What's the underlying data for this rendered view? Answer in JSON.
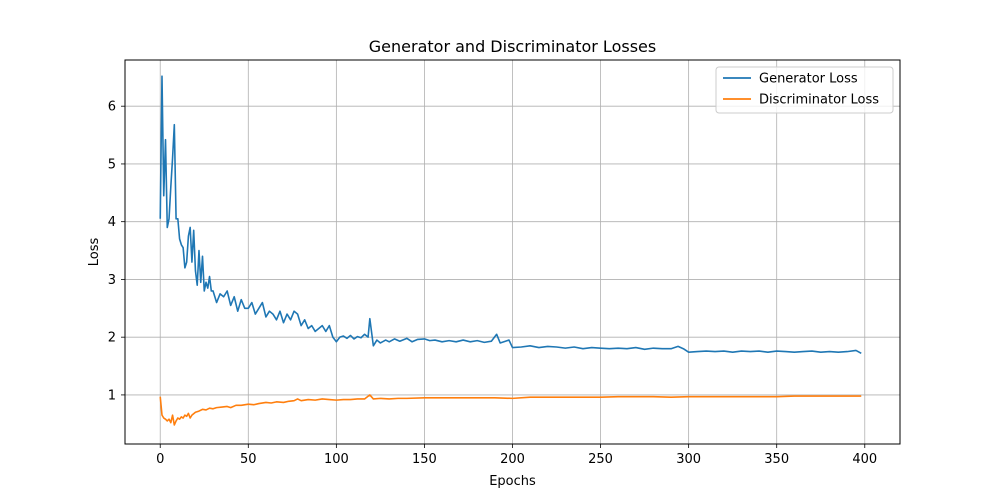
{
  "chart_data": {
    "type": "line",
    "title": "Generator and Discriminator Losses",
    "xlabel": "Epochs",
    "ylabel": "Loss",
    "xlim": [
      -20,
      420
    ],
    "ylim": [
      0.15,
      6.8
    ],
    "xticks": [
      0,
      50,
      100,
      150,
      200,
      250,
      300,
      350,
      400
    ],
    "yticks": [
      1,
      2,
      3,
      4,
      5,
      6
    ],
    "grid": true,
    "legend_position": "top-right",
    "colors": {
      "generator": "#1f77b4",
      "discriminator": "#ff7f0e"
    },
    "series": [
      {
        "name": "Generator Loss",
        "color": "#1f77b4",
        "points": [
          [
            0,
            4.05
          ],
          [
            1,
            6.52
          ],
          [
            2,
            4.45
          ],
          [
            3,
            5.42
          ],
          [
            4,
            3.9
          ],
          [
            5,
            4.05
          ],
          [
            6,
            4.6
          ],
          [
            7,
            5.1
          ],
          [
            8,
            5.68
          ],
          [
            9,
            4.05
          ],
          [
            10,
            4.05
          ],
          [
            11,
            3.7
          ],
          [
            12,
            3.6
          ],
          [
            13,
            3.55
          ],
          [
            14,
            3.2
          ],
          [
            15,
            3.3
          ],
          [
            16,
            3.75
          ],
          [
            17,
            3.9
          ],
          [
            18,
            3.3
          ],
          [
            19,
            3.85
          ],
          [
            20,
            3.15
          ],
          [
            21,
            2.9
          ],
          [
            22,
            3.5
          ],
          [
            23,
            2.95
          ],
          [
            24,
            3.4
          ],
          [
            25,
            2.8
          ],
          [
            26,
            2.95
          ],
          [
            27,
            2.85
          ],
          [
            28,
            3.05
          ],
          [
            29,
            2.8
          ],
          [
            30,
            2.8
          ],
          [
            32,
            2.6
          ],
          [
            34,
            2.75
          ],
          [
            36,
            2.7
          ],
          [
            38,
            2.8
          ],
          [
            40,
            2.55
          ],
          [
            42,
            2.7
          ],
          [
            44,
            2.45
          ],
          [
            46,
            2.65
          ],
          [
            48,
            2.5
          ],
          [
            50,
            2.5
          ],
          [
            52,
            2.6
          ],
          [
            54,
            2.4
          ],
          [
            56,
            2.5
          ],
          [
            58,
            2.6
          ],
          [
            60,
            2.35
          ],
          [
            62,
            2.45
          ],
          [
            64,
            2.4
          ],
          [
            66,
            2.3
          ],
          [
            68,
            2.45
          ],
          [
            70,
            2.25
          ],
          [
            72,
            2.4
          ],
          [
            74,
            2.3
          ],
          [
            76,
            2.45
          ],
          [
            78,
            2.4
          ],
          [
            80,
            2.2
          ],
          [
            82,
            2.3
          ],
          [
            84,
            2.15
          ],
          [
            86,
            2.2
          ],
          [
            88,
            2.1
          ],
          [
            90,
            2.15
          ],
          [
            92,
            2.2
          ],
          [
            94,
            2.1
          ],
          [
            96,
            2.2
          ],
          [
            98,
            2.0
          ],
          [
            100,
            1.92
          ],
          [
            102,
            2.0
          ],
          [
            104,
            2.02
          ],
          [
            106,
            1.98
          ],
          [
            108,
            2.03
          ],
          [
            110,
            1.97
          ],
          [
            112,
            2.01
          ],
          [
            114,
            1.99
          ],
          [
            116,
            2.05
          ],
          [
            118,
            2.0
          ],
          [
            119,
            2.32
          ],
          [
            121,
            1.85
          ],
          [
            123,
            1.95
          ],
          [
            125,
            1.9
          ],
          [
            128,
            1.95
          ],
          [
            130,
            1.92
          ],
          [
            133,
            1.97
          ],
          [
            136,
            1.93
          ],
          [
            140,
            1.98
          ],
          [
            143,
            1.92
          ],
          [
            146,
            1.96
          ],
          [
            150,
            1.97
          ],
          [
            153,
            1.94
          ],
          [
            156,
            1.95
          ],
          [
            160,
            1.92
          ],
          [
            164,
            1.94
          ],
          [
            168,
            1.92
          ],
          [
            172,
            1.95
          ],
          [
            176,
            1.92
          ],
          [
            180,
            1.94
          ],
          [
            184,
            1.91
          ],
          [
            188,
            1.93
          ],
          [
            191,
            2.05
          ],
          [
            193,
            1.9
          ],
          [
            196,
            1.93
          ],
          [
            198,
            1.95
          ],
          [
            200,
            1.82
          ],
          [
            205,
            1.83
          ],
          [
            210,
            1.85
          ],
          [
            215,
            1.82
          ],
          [
            220,
            1.84
          ],
          [
            225,
            1.83
          ],
          [
            230,
            1.81
          ],
          [
            235,
            1.83
          ],
          [
            240,
            1.8
          ],
          [
            245,
            1.82
          ],
          [
            250,
            1.81
          ],
          [
            255,
            1.8
          ],
          [
            260,
            1.81
          ],
          [
            265,
            1.8
          ],
          [
            270,
            1.82
          ],
          [
            275,
            1.79
          ],
          [
            280,
            1.81
          ],
          [
            285,
            1.8
          ],
          [
            290,
            1.8
          ],
          [
            294,
            1.84
          ],
          [
            297,
            1.8
          ],
          [
            300,
            1.74
          ],
          [
            305,
            1.75
          ],
          [
            310,
            1.76
          ],
          [
            315,
            1.75
          ],
          [
            320,
            1.76
          ],
          [
            325,
            1.74
          ],
          [
            330,
            1.76
          ],
          [
            335,
            1.75
          ],
          [
            340,
            1.76
          ],
          [
            345,
            1.74
          ],
          [
            350,
            1.76
          ],
          [
            355,
            1.75
          ],
          [
            360,
            1.74
          ],
          [
            365,
            1.75
          ],
          [
            370,
            1.76
          ],
          [
            375,
            1.74
          ],
          [
            380,
            1.75
          ],
          [
            385,
            1.74
          ],
          [
            390,
            1.75
          ],
          [
            395,
            1.77
          ],
          [
            398,
            1.72
          ]
        ]
      },
      {
        "name": "Discriminator Loss",
        "color": "#ff7f0e",
        "points": [
          [
            0,
            0.97
          ],
          [
            1,
            0.65
          ],
          [
            2,
            0.6
          ],
          [
            3,
            0.58
          ],
          [
            4,
            0.55
          ],
          [
            5,
            0.58
          ],
          [
            6,
            0.52
          ],
          [
            7,
            0.65
          ],
          [
            8,
            0.48
          ],
          [
            9,
            0.55
          ],
          [
            10,
            0.6
          ],
          [
            11,
            0.58
          ],
          [
            12,
            0.62
          ],
          [
            13,
            0.6
          ],
          [
            14,
            0.65
          ],
          [
            15,
            0.63
          ],
          [
            16,
            0.68
          ],
          [
            17,
            0.6
          ],
          [
            18,
            0.65
          ],
          [
            20,
            0.7
          ],
          [
            22,
            0.72
          ],
          [
            24,
            0.75
          ],
          [
            26,
            0.74
          ],
          [
            28,
            0.77
          ],
          [
            30,
            0.76
          ],
          [
            32,
            0.78
          ],
          [
            35,
            0.79
          ],
          [
            38,
            0.8
          ],
          [
            40,
            0.78
          ],
          [
            43,
            0.82
          ],
          [
            46,
            0.82
          ],
          [
            50,
            0.84
          ],
          [
            53,
            0.83
          ],
          [
            56,
            0.85
          ],
          [
            60,
            0.87
          ],
          [
            63,
            0.86
          ],
          [
            66,
            0.88
          ],
          [
            70,
            0.87
          ],
          [
            73,
            0.89
          ],
          [
            76,
            0.9
          ],
          [
            78,
            0.93
          ],
          [
            80,
            0.9
          ],
          [
            84,
            0.92
          ],
          [
            88,
            0.91
          ],
          [
            92,
            0.93
          ],
          [
            96,
            0.92
          ],
          [
            100,
            0.91
          ],
          [
            104,
            0.92
          ],
          [
            108,
            0.92
          ],
          [
            112,
            0.93
          ],
          [
            116,
            0.93
          ],
          [
            119,
            1.0
          ],
          [
            121,
            0.93
          ],
          [
            125,
            0.94
          ],
          [
            130,
            0.93
          ],
          [
            135,
            0.94
          ],
          [
            140,
            0.94
          ],
          [
            150,
            0.95
          ],
          [
            160,
            0.95
          ],
          [
            170,
            0.95
          ],
          [
            180,
            0.95
          ],
          [
            190,
            0.95
          ],
          [
            200,
            0.94
          ],
          [
            210,
            0.96
          ],
          [
            220,
            0.96
          ],
          [
            230,
            0.96
          ],
          [
            240,
            0.96
          ],
          [
            250,
            0.96
          ],
          [
            260,
            0.97
          ],
          [
            270,
            0.97
          ],
          [
            280,
            0.97
          ],
          [
            290,
            0.96
          ],
          [
            300,
            0.97
          ],
          [
            310,
            0.97
          ],
          [
            320,
            0.97
          ],
          [
            330,
            0.97
          ],
          [
            340,
            0.97
          ],
          [
            350,
            0.97
          ],
          [
            360,
            0.98
          ],
          [
            370,
            0.98
          ],
          [
            380,
            0.98
          ],
          [
            390,
            0.98
          ],
          [
            398,
            0.98
          ]
        ]
      }
    ]
  }
}
